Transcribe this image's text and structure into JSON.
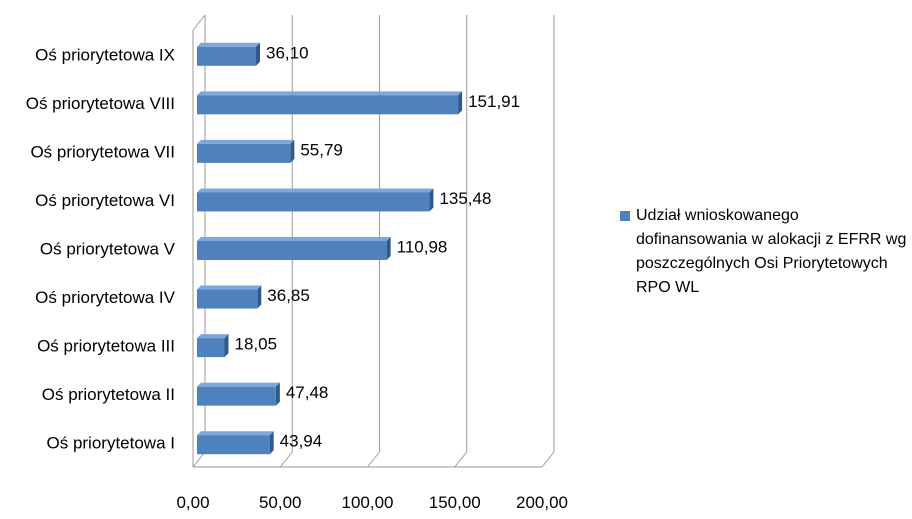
{
  "chart_data": {
    "type": "bar",
    "orientation": "horizontal",
    "categories": [
      "Oś priorytetowa I",
      "Oś priorytetowa II",
      "Oś priorytetowa III",
      "Oś priorytetowa IV",
      "Oś priorytetowa V",
      "Oś priorytetowa VI",
      "Oś priorytetowa VII",
      "Oś priorytetowa VIII",
      "Oś priorytetowa IX"
    ],
    "series": [
      {
        "name": "Udział wnioskowanego dofinansowania w alokacji z EFRR wg poszczególnych Osi Priorytetowych RPO WL",
        "values": [
          43.94,
          47.48,
          18.05,
          36.85,
          110.98,
          135.48,
          55.79,
          151.91,
          36.1
        ],
        "labels": [
          "43,94",
          "47,48",
          "18,05",
          "36,85",
          "110,98",
          "135,48",
          "55,79",
          "151,91",
          "36,10"
        ]
      }
    ],
    "xlim": [
      0,
      200
    ],
    "ticks": [
      "0,00",
      "50,00",
      "100,00",
      "150,00",
      "200,00"
    ],
    "tick_values": [
      0,
      50,
      100,
      150,
      200
    ],
    "grid": true,
    "legend_position": "right",
    "colors": {
      "bar": "#4F81BD",
      "bar_dark": "#2F5A8C",
      "bar_light": "#7FA7D8",
      "grid": "#9A9A9A"
    }
  },
  "legend": {
    "label": "Udział wnioskowanego dofinansowania w alokacji z EFRR wg poszczególnych Osi Priorytetowych RPO WL"
  }
}
